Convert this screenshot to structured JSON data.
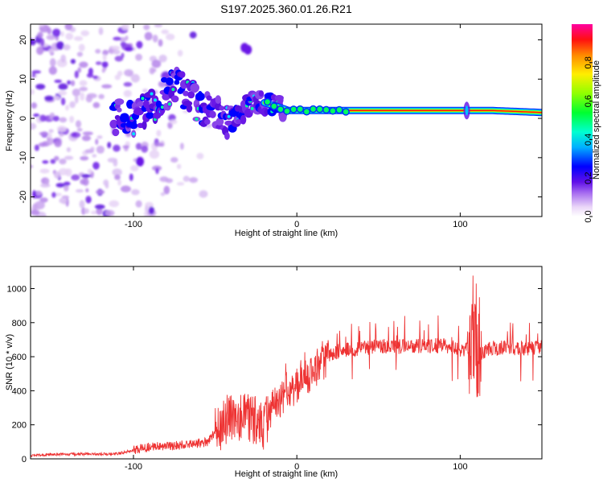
{
  "title": "S197.2025.360.01.26.R21",
  "chart_data": [
    {
      "type": "heatmap",
      "name": "spectrogram",
      "xlabel": "Height of straight line (km)",
      "ylabel": "Frequency (Hz)",
      "xlim": [
        -163,
        150
      ],
      "ylim": [
        -25,
        24
      ],
      "xticks": [
        -100,
        0,
        100
      ],
      "yticks": [
        -20,
        -10,
        0,
        10,
        20
      ],
      "colorbar": {
        "label": "Normalized spectral amplitude",
        "range": [
          0,
          1
        ],
        "ticks": [
          0.0,
          0.2,
          0.4,
          0.6,
          0.8
        ]
      },
      "ridge": {
        "description": "dominant frequency track",
        "x": [
          -110,
          -100,
          -90,
          -80,
          -72,
          -65,
          -58,
          -50,
          -42,
          -35,
          -28,
          -20,
          -12,
          -5,
          0,
          10,
          30,
          60,
          90,
          105,
          120,
          150
        ],
        "y": [
          0,
          0.5,
          2,
          6,
          9,
          5,
          3,
          1,
          -1,
          1,
          4,
          4,
          3,
          2,
          2,
          2,
          2,
          2,
          2,
          2,
          2,
          1.5
        ]
      }
    },
    {
      "type": "line",
      "name": "snr",
      "xlabel": "Height of straight line (km)",
      "ylabel": "SNR (10 * v/v)",
      "xlim": [
        -163,
        150
      ],
      "ylim": [
        0,
        1130
      ],
      "xticks": [
        -100,
        0,
        100
      ],
      "yticks": [
        0,
        200,
        400,
        600,
        800,
        1000
      ],
      "color": "#ee3333",
      "series": [
        {
          "name": "SNR",
          "x": [
            -163,
            -150,
            -130,
            -110,
            -100,
            -90,
            -80,
            -70,
            -60,
            -55,
            -50,
            -45,
            -40,
            -35,
            -30,
            -25,
            -20,
            -15,
            -10,
            -5,
            0,
            5,
            10,
            15,
            20,
            25,
            30,
            40,
            50,
            60,
            70,
            80,
            90,
            100,
            105,
            108,
            112,
            120,
            130,
            140,
            150
          ],
          "y": [
            20,
            25,
            28,
            30,
            50,
            70,
            75,
            80,
            90,
            100,
            150,
            220,
            260,
            250,
            230,
            220,
            200,
            300,
            350,
            400,
            430,
            480,
            500,
            560,
            600,
            630,
            640,
            650,
            660,
            660,
            660,
            665,
            665,
            640,
            650,
            750,
            620,
            650,
            650,
            650,
            655
          ]
        }
      ]
    }
  ]
}
